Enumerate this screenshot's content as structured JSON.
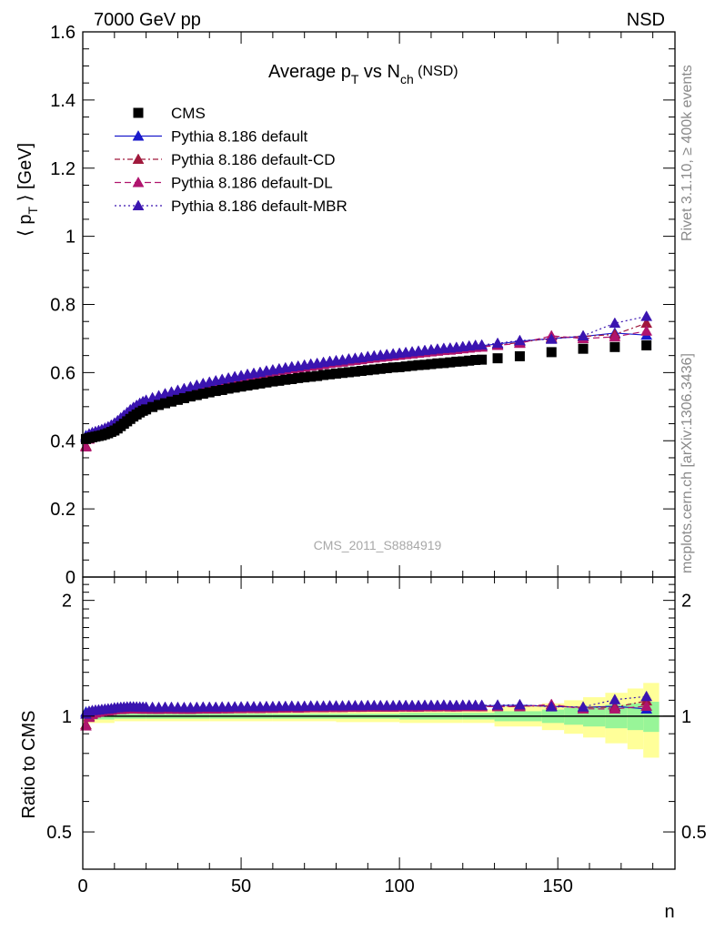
{
  "header": {
    "left": "7000 GeV pp",
    "right": "NSD"
  },
  "side_labels": {
    "rivet": "Rivet 3.1.10, ≥ 400k events",
    "mcplots": "mcplots.cern.ch [arXiv:1306.3436]"
  },
  "watermark": "CMS_2011_S8884919",
  "chart_data": [
    {
      "type": "scatter",
      "title": {
        "main": "Average p",
        "sub1": "T",
        "mid": " vs N",
        "sub2": "ch",
        "tail": " (NSD)"
      },
      "ylabel": {
        "pre": "⟨ p",
        "sub": "T",
        "post": " ⟩ [GeV]"
      },
      "xlim": [
        0,
        187
      ],
      "ylim": [
        0,
        1.6
      ],
      "yticks": [
        "0",
        "0.2",
        "0.4",
        "0.6",
        "0.8",
        "1",
        "1.2",
        "1.4",
        "1.6"
      ],
      "legend_placement": "top-left",
      "legend": [
        {
          "label": "CMS",
          "marker": "square",
          "color": "#000000",
          "dash": ""
        },
        {
          "label": "Pythia 8.186 default",
          "marker": "triangle",
          "color": "#1a1acc",
          "dash": ""
        },
        {
          "label": "Pythia 8.186 default-CD",
          "marker": "triangle",
          "color": "#a0193c",
          "dash": "6,3,2,3"
        },
        {
          "label": "Pythia 8.186 default-DL",
          "marker": "triangle",
          "color": "#b0146e",
          "dash": "7,4"
        },
        {
          "label": "Pythia 8.186 default-MBR",
          "marker": "triangle",
          "color": "#3a14b0",
          "dash": "2,3"
        }
      ],
      "series": [
        {
          "name": "CMS",
          "x": [
            1,
            2,
            3,
            4,
            5,
            6,
            7,
            8,
            9,
            10,
            11,
            12,
            13,
            14,
            15,
            16,
            17,
            18,
            19,
            20,
            22,
            24,
            26,
            28,
            30,
            32,
            34,
            36,
            38,
            40,
            42,
            44,
            46,
            48,
            50,
            52,
            54,
            56,
            58,
            60,
            62,
            64,
            66,
            68,
            70,
            72,
            74,
            76,
            78,
            80,
            82,
            84,
            86,
            88,
            90,
            92,
            94,
            96,
            98,
            100,
            102,
            104,
            106,
            108,
            110,
            112,
            114,
            116,
            118,
            120,
            122,
            124,
            126,
            131,
            138,
            148,
            158,
            168,
            178
          ],
          "y": [
            0.405,
            0.408,
            0.41,
            0.412,
            0.414,
            0.416,
            0.419,
            0.422,
            0.426,
            0.43,
            0.436,
            0.443,
            0.45,
            0.457,
            0.464,
            0.471,
            0.477,
            0.483,
            0.488,
            0.492,
            0.499,
            0.505,
            0.51,
            0.515,
            0.52,
            0.525,
            0.53,
            0.534,
            0.538,
            0.542,
            0.546,
            0.549,
            0.553,
            0.556,
            0.559,
            0.562,
            0.565,
            0.568,
            0.571,
            0.574,
            0.576,
            0.579,
            0.581,
            0.584,
            0.586,
            0.588,
            0.59,
            0.593,
            0.595,
            0.597,
            0.599,
            0.601,
            0.603,
            0.605,
            0.607,
            0.609,
            0.611,
            0.613,
            0.615,
            0.616,
            0.618,
            0.62,
            0.622,
            0.623,
            0.625,
            0.627,
            0.628,
            0.63,
            0.632,
            0.633,
            0.635,
            0.637,
            0.638,
            0.642,
            0.648,
            0.66,
            0.67,
            0.675,
            0.68
          ]
        },
        {
          "name": "Pythia 8.186 default",
          "x": [
            1,
            2,
            3,
            4,
            5,
            6,
            7,
            8,
            9,
            10,
            11,
            12,
            13,
            14,
            15,
            16,
            17,
            18,
            19,
            20,
            22,
            24,
            26,
            28,
            30,
            32,
            34,
            36,
            38,
            40,
            42,
            44,
            46,
            48,
            50,
            52,
            54,
            56,
            58,
            60,
            62,
            64,
            66,
            68,
            70,
            72,
            74,
            76,
            78,
            80,
            82,
            84,
            86,
            88,
            90,
            92,
            94,
            96,
            98,
            100,
            102,
            104,
            106,
            108,
            110,
            112,
            114,
            116,
            118,
            120,
            122,
            124,
            126,
            131,
            138,
            148,
            158,
            168,
            178
          ],
          "y": [
            0.415,
            0.418,
            0.421,
            0.424,
            0.427,
            0.43,
            0.434,
            0.439,
            0.444,
            0.45,
            0.457,
            0.465,
            0.473,
            0.481,
            0.489,
            0.496,
            0.502,
            0.508,
            0.513,
            0.517,
            0.524,
            0.53,
            0.536,
            0.541,
            0.546,
            0.551,
            0.556,
            0.561,
            0.566,
            0.57,
            0.574,
            0.578,
            0.582,
            0.586,
            0.589,
            0.593,
            0.596,
            0.599,
            0.603,
            0.606,
            0.609,
            0.612,
            0.615,
            0.617,
            0.62,
            0.623,
            0.625,
            0.628,
            0.631,
            0.633,
            0.635,
            0.638,
            0.64,
            0.642,
            0.645,
            0.647,
            0.649,
            0.651,
            0.653,
            0.655,
            0.657,
            0.659,
            0.661,
            0.663,
            0.665,
            0.667,
            0.669,
            0.67,
            0.672,
            0.674,
            0.676,
            0.678,
            0.679,
            0.684,
            0.692,
            0.7,
            0.706,
            0.716,
            0.71
          ]
        },
        {
          "name": "Pythia 8.186 default-CD",
          "x": [
            1,
            2,
            3,
            4,
            5,
            6,
            7,
            8,
            9,
            10,
            11,
            12,
            13,
            14,
            15,
            16,
            17,
            18,
            19,
            20,
            22,
            24,
            26,
            28,
            30,
            32,
            34,
            36,
            38,
            40,
            42,
            44,
            46,
            48,
            50,
            52,
            54,
            56,
            58,
            60,
            62,
            64,
            66,
            68,
            70,
            72,
            74,
            76,
            78,
            80,
            82,
            84,
            86,
            88,
            90,
            92,
            94,
            96,
            98,
            100,
            102,
            104,
            106,
            108,
            110,
            112,
            114,
            116,
            118,
            120,
            122,
            124,
            126,
            131,
            138,
            148,
            158,
            168,
            178
          ],
          "y": [
            0.385,
            0.408,
            0.416,
            0.421,
            0.425,
            0.429,
            0.433,
            0.437,
            0.442,
            0.448,
            0.455,
            0.462,
            0.47,
            0.478,
            0.486,
            0.493,
            0.499,
            0.505,
            0.51,
            0.514,
            0.521,
            0.527,
            0.533,
            0.538,
            0.543,
            0.548,
            0.553,
            0.558,
            0.563,
            0.567,
            0.571,
            0.575,
            0.579,
            0.583,
            0.586,
            0.59,
            0.593,
            0.596,
            0.6,
            0.603,
            0.606,
            0.609,
            0.612,
            0.614,
            0.617,
            0.62,
            0.622,
            0.625,
            0.628,
            0.63,
            0.632,
            0.635,
            0.637,
            0.639,
            0.642,
            0.644,
            0.646,
            0.648,
            0.65,
            0.652,
            0.654,
            0.656,
            0.658,
            0.66,
            0.662,
            0.664,
            0.666,
            0.667,
            0.669,
            0.671,
            0.673,
            0.675,
            0.676,
            0.681,
            0.688,
            0.702,
            0.706,
            0.712,
            0.745
          ]
        },
        {
          "name": "Pythia 8.186 default-DL",
          "x": [
            1,
            2,
            3,
            4,
            5,
            6,
            7,
            8,
            9,
            10,
            11,
            12,
            13,
            14,
            15,
            16,
            17,
            18,
            19,
            20,
            22,
            24,
            26,
            28,
            30,
            32,
            34,
            36,
            38,
            40,
            42,
            44,
            46,
            48,
            50,
            52,
            54,
            56,
            58,
            60,
            62,
            64,
            66,
            68,
            70,
            72,
            74,
            76,
            78,
            80,
            82,
            84,
            86,
            88,
            90,
            92,
            94,
            96,
            98,
            100,
            102,
            104,
            106,
            108,
            110,
            112,
            114,
            116,
            118,
            120,
            122,
            124,
            126,
            131,
            138,
            148,
            158,
            168,
            178
          ],
          "y": [
            0.382,
            0.405,
            0.414,
            0.42,
            0.424,
            0.428,
            0.432,
            0.436,
            0.441,
            0.447,
            0.454,
            0.461,
            0.469,
            0.477,
            0.485,
            0.492,
            0.498,
            0.504,
            0.509,
            0.513,
            0.52,
            0.526,
            0.532,
            0.537,
            0.542,
            0.547,
            0.552,
            0.557,
            0.562,
            0.566,
            0.57,
            0.574,
            0.578,
            0.582,
            0.585,
            0.589,
            0.592,
            0.595,
            0.599,
            0.602,
            0.605,
            0.608,
            0.611,
            0.613,
            0.616,
            0.619,
            0.621,
            0.624,
            0.627,
            0.629,
            0.631,
            0.634,
            0.636,
            0.638,
            0.641,
            0.643,
            0.645,
            0.647,
            0.649,
            0.651,
            0.653,
            0.655,
            0.657,
            0.659,
            0.661,
            0.663,
            0.665,
            0.666,
            0.668,
            0.67,
            0.672,
            0.674,
            0.675,
            0.68,
            0.686,
            0.708,
            0.7,
            0.705,
            0.722
          ]
        },
        {
          "name": "Pythia 8.186 default-MBR",
          "x": [
            1,
            2,
            3,
            4,
            5,
            6,
            7,
            8,
            9,
            10,
            11,
            12,
            13,
            14,
            15,
            16,
            17,
            18,
            19,
            20,
            22,
            24,
            26,
            28,
            30,
            32,
            34,
            36,
            38,
            40,
            42,
            44,
            46,
            48,
            50,
            52,
            54,
            56,
            58,
            60,
            62,
            64,
            66,
            68,
            70,
            72,
            74,
            76,
            78,
            80,
            82,
            84,
            86,
            88,
            90,
            92,
            94,
            96,
            98,
            100,
            102,
            104,
            106,
            108,
            110,
            112,
            114,
            116,
            118,
            120,
            122,
            124,
            126,
            131,
            138,
            148,
            158,
            168,
            178
          ],
          "y": [
            0.41,
            0.42,
            0.424,
            0.427,
            0.43,
            0.433,
            0.437,
            0.441,
            0.446,
            0.452,
            0.459,
            0.467,
            0.475,
            0.483,
            0.491,
            0.498,
            0.504,
            0.51,
            0.515,
            0.519,
            0.526,
            0.532,
            0.538,
            0.543,
            0.548,
            0.553,
            0.558,
            0.563,
            0.568,
            0.572,
            0.576,
            0.58,
            0.584,
            0.588,
            0.591,
            0.595,
            0.598,
            0.601,
            0.605,
            0.608,
            0.611,
            0.614,
            0.617,
            0.619,
            0.622,
            0.625,
            0.627,
            0.63,
            0.633,
            0.635,
            0.637,
            0.64,
            0.642,
            0.644,
            0.647,
            0.649,
            0.651,
            0.653,
            0.655,
            0.657,
            0.659,
            0.661,
            0.663,
            0.665,
            0.667,
            0.669,
            0.671,
            0.672,
            0.674,
            0.676,
            0.678,
            0.68,
            0.681,
            0.686,
            0.694,
            0.698,
            0.708,
            0.745,
            0.765
          ]
        }
      ]
    },
    {
      "type": "scatter",
      "ylabel": "Ratio to CMS",
      "xlabel": "n",
      "xlim": [
        0,
        187
      ],
      "ylim": [
        0.4,
        2.3
      ],
      "yscale": "log",
      "yticks": [
        "0.5",
        "1",
        "2"
      ],
      "xticks": [
        "0",
        "50",
        "100",
        "150"
      ],
      "band_colors": {
        "inner": "#98f598",
        "outer": "#ffff99"
      },
      "uncertainty_band": {
        "x_edges": [
          0,
          10,
          20,
          40,
          60,
          80,
          100,
          120,
          130,
          135,
          145,
          152,
          158,
          165,
          172,
          177,
          182
        ],
        "inner_half": [
          0.02,
          0.015,
          0.015,
          0.015,
          0.015,
          0.015,
          0.02,
          0.02,
          0.03,
          0.03,
          0.04,
          0.05,
          0.06,
          0.07,
          0.08,
          0.09
        ],
        "outer_half": [
          0.04,
          0.03,
          0.03,
          0.03,
          0.03,
          0.035,
          0.04,
          0.04,
          0.06,
          0.06,
          0.08,
          0.1,
          0.12,
          0.15,
          0.18,
          0.22
        ]
      }
    }
  ]
}
